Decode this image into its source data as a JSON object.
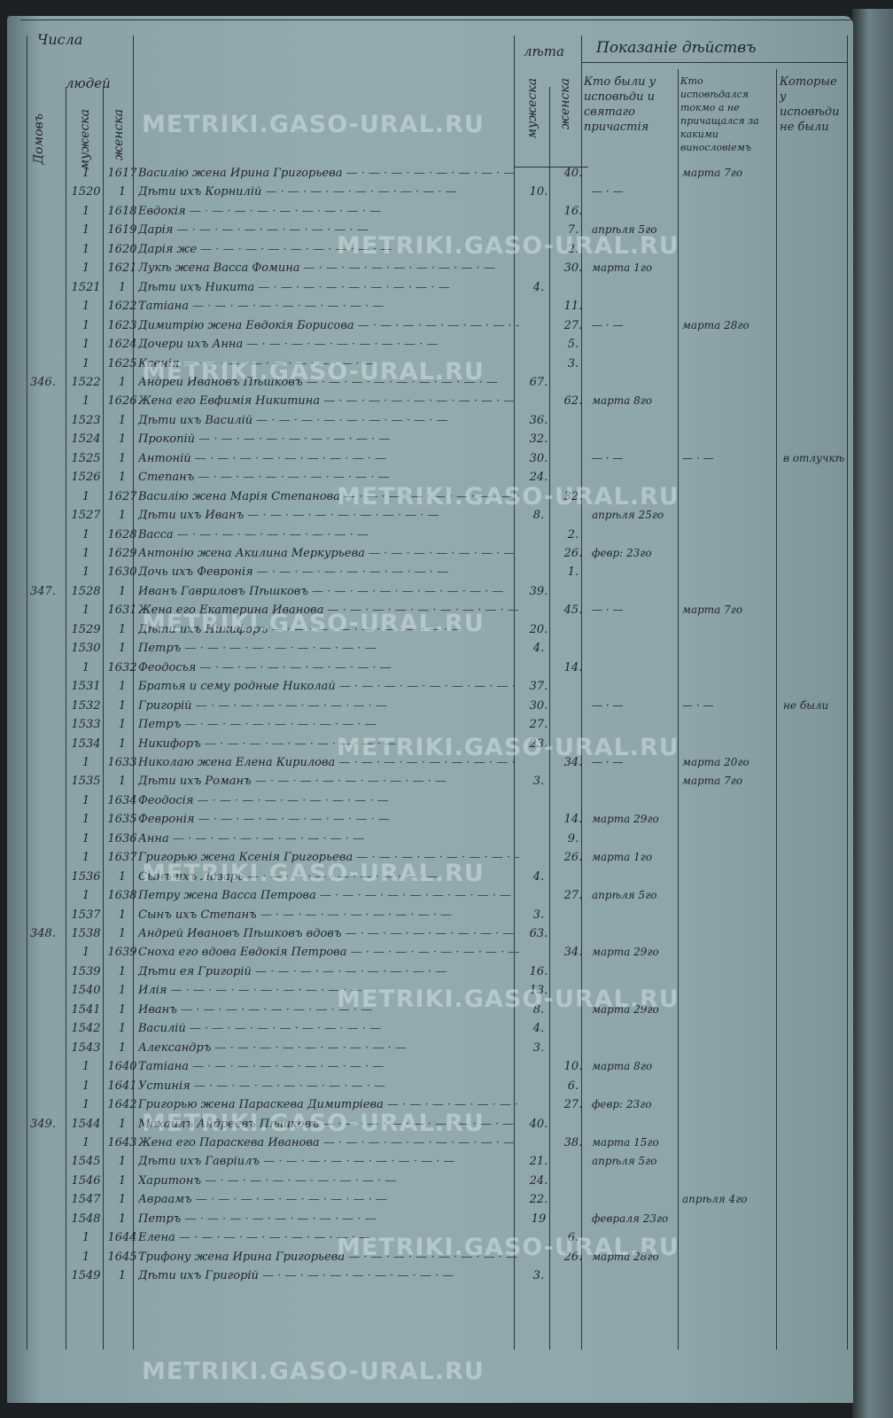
{
  "header": {
    "chisla": "Числа",
    "domov": "Домовъ",
    "lyudey": "людей",
    "muzheska": "мужеска",
    "zhenska": "женска",
    "leta": "лѣта",
    "pokazanie": "Показаніе дѣйствъ",
    "col1": "Кто были у исповѣди и святаго причастія",
    "col2": "Кто исповѣдался токмо а не причащался за какими винословіемъ",
    "col3": "Которые у исповѣди не были"
  },
  "watermark": "METRIKI.GASO-URAL.RU",
  "rows": [
    {
      "hh": "",
      "m": "1",
      "f": "1617",
      "name": "Василію жена Ирина Григорьева",
      "ma": "",
      "fa": "40.",
      "c1": "",
      "c2": "марта 7го",
      "c3": ""
    },
    {
      "hh": "",
      "m": "1520",
      "f": "1",
      "name": "Дѣти ихъ Корнилій",
      "ma": "10.",
      "fa": "",
      "c1": "— · —",
      "c2": "",
      "c3": ""
    },
    {
      "hh": "",
      "m": "1",
      "f": "1618",
      "name": "Евдокія",
      "ma": "",
      "fa": "16.",
      "c1": "",
      "c2": "",
      "c3": ""
    },
    {
      "hh": "",
      "m": "1",
      "f": "1619",
      "name": "Дарія",
      "ma": "",
      "fa": "7.",
      "c1": "апрѣля 5го",
      "c2": "",
      "c3": ""
    },
    {
      "hh": "",
      "m": "1",
      "f": "1620",
      "name": "Дарія же",
      "ma": "",
      "fa": "2.",
      "c1": "",
      "c2": "",
      "c3": ""
    },
    {
      "hh": "",
      "m": "1",
      "f": "1621",
      "name": "Лукѣ жена Васса Фомина",
      "ma": "",
      "fa": "30.",
      "c1": "марта 1го",
      "c2": "",
      "c3": ""
    },
    {
      "hh": "",
      "m": "1521",
      "f": "1",
      "name": "Дѣти ихъ Никита",
      "ma": "4.",
      "fa": "",
      "c1": "",
      "c2": "",
      "c3": ""
    },
    {
      "hh": "",
      "m": "1",
      "f": "1622",
      "name": "Татіана",
      "ma": "",
      "fa": "11.",
      "c1": "",
      "c2": "",
      "c3": ""
    },
    {
      "hh": "",
      "m": "1",
      "f": "1623",
      "name": "Димитрію жена Евдокія Борисова",
      "ma": "",
      "fa": "27.",
      "c1": "— · —",
      "c2": "марта 28го",
      "c3": ""
    },
    {
      "hh": "",
      "m": "1",
      "f": "1624",
      "name": "Дочери ихъ Анна",
      "ma": "",
      "fa": "5.",
      "c1": "",
      "c2": "",
      "c3": ""
    },
    {
      "hh": "",
      "m": "1",
      "f": "1625",
      "name": "Ксенія",
      "ma": "",
      "fa": "3.",
      "c1": "",
      "c2": "",
      "c3": ""
    },
    {
      "hh": "346.",
      "m": "1522",
      "f": "1",
      "name": "Андрей Ивановъ Пѣшковъ",
      "ma": "67.",
      "fa": "",
      "c1": "",
      "c2": "",
      "c3": ""
    },
    {
      "hh": "",
      "m": "1",
      "f": "1626",
      "name": "Жена его Евфимія Никитина",
      "ma": "",
      "fa": "62.",
      "c1": "марта 8го",
      "c2": "",
      "c3": ""
    },
    {
      "hh": "",
      "m": "1523",
      "f": "1",
      "name": "Дѣти ихъ Василій",
      "ma": "36.",
      "fa": "",
      "c1": "",
      "c2": "",
      "c3": ""
    },
    {
      "hh": "",
      "m": "1524",
      "f": "1",
      "name": "Прокопій",
      "ma": "32.",
      "fa": "",
      "c1": "",
      "c2": "",
      "c3": ""
    },
    {
      "hh": "",
      "m": "1525",
      "f": "1",
      "name": "Антоній",
      "ma": "30.",
      "fa": "",
      "c1": "— · —",
      "c2": "— · —",
      "c3": "в отлучкѣ"
    },
    {
      "hh": "",
      "m": "1526",
      "f": "1",
      "name": "Степанъ",
      "ma": "24.",
      "fa": "",
      "c1": "",
      "c2": "",
      "c3": ""
    },
    {
      "hh": "",
      "m": "1",
      "f": "1627",
      "name": "Василію жена Марія Степанова",
      "ma": "",
      "fa": "32.",
      "c1": "",
      "c2": "",
      "c3": ""
    },
    {
      "hh": "",
      "m": "1527",
      "f": "1",
      "name": "Дѣти ихъ Иванъ",
      "ma": "8.",
      "fa": "",
      "c1": "апрѣля 25го",
      "c2": "",
      "c3": ""
    },
    {
      "hh": "",
      "m": "1",
      "f": "1628",
      "name": "Васса",
      "ma": "",
      "fa": "2.",
      "c1": "",
      "c2": "",
      "c3": ""
    },
    {
      "hh": "",
      "m": "1",
      "f": "1629",
      "name": "Антонію жена Акилина Меркурьева",
      "ma": "",
      "fa": "26.",
      "c1": "февр: 23го",
      "c2": "",
      "c3": ""
    },
    {
      "hh": "",
      "m": "1",
      "f": "1630",
      "name": "Дочь ихъ Февронія",
      "ma": "",
      "fa": "1.",
      "c1": "",
      "c2": "",
      "c3": ""
    },
    {
      "hh": "347.",
      "m": "1528",
      "f": "1",
      "name": "Иванъ Гавриловъ Пѣшковъ",
      "ma": "39.",
      "fa": "",
      "c1": "",
      "c2": "",
      "c3": ""
    },
    {
      "hh": "",
      "m": "1",
      "f": "1631",
      "name": "Жена его Екатерина Иванова",
      "ma": "",
      "fa": "45.",
      "c1": "— · —",
      "c2": "марта 7го",
      "c3": ""
    },
    {
      "hh": "",
      "m": "1529",
      "f": "1",
      "name": "Дѣти ихъ Никифоръ",
      "ma": "20.",
      "fa": "",
      "c1": "",
      "c2": "",
      "c3": ""
    },
    {
      "hh": "",
      "m": "1530",
      "f": "1",
      "name": "Петръ",
      "ma": "4.",
      "fa": "",
      "c1": "",
      "c2": "",
      "c3": ""
    },
    {
      "hh": "",
      "m": "1",
      "f": "1632",
      "name": "Феодосья",
      "ma": "",
      "fa": "14.",
      "c1": "",
      "c2": "",
      "c3": ""
    },
    {
      "hh": "",
      "m": "1531",
      "f": "1",
      "name": "Братья и сему родные Николай",
      "ma": "37.",
      "fa": "",
      "c1": "",
      "c2": "",
      "c3": ""
    },
    {
      "hh": "",
      "m": "1532",
      "f": "1",
      "name": "Григорій",
      "ma": "30.",
      "fa": "",
      "c1": "— · —",
      "c2": "— · —",
      "c3": "не были"
    },
    {
      "hh": "",
      "m": "1533",
      "f": "1",
      "name": "Петръ",
      "ma": "27.",
      "fa": "",
      "c1": "",
      "c2": "",
      "c3": ""
    },
    {
      "hh": "",
      "m": "1534",
      "f": "1",
      "name": "Никифоръ",
      "ma": "23.",
      "fa": "",
      "c1": "",
      "c2": "",
      "c3": ""
    },
    {
      "hh": "",
      "m": "1",
      "f": "1633",
      "name": "Николаю жена Елена Кирилова",
      "ma": "",
      "fa": "34.",
      "c1": "— · —",
      "c2": "марта 20го",
      "c3": ""
    },
    {
      "hh": "",
      "m": "1535",
      "f": "1",
      "name": "Дѣти ихъ Романъ",
      "ma": "3.",
      "fa": "",
      "c1": "",
      "c2": "марта 7го",
      "c3": ""
    },
    {
      "hh": "",
      "m": "1",
      "f": "1634",
      "name": "Феодосія",
      "ma": "",
      "fa": "",
      "c1": "",
      "c2": "",
      "c3": ""
    },
    {
      "hh": "",
      "m": "1",
      "f": "1635",
      "name": "Февронія",
      "ma": "",
      "fa": "14.",
      "c1": "марта 29го",
      "c2": "",
      "c3": ""
    },
    {
      "hh": "",
      "m": "1",
      "f": "1636",
      "name": "Анна",
      "ma": "",
      "fa": "9.",
      "c1": "",
      "c2": "",
      "c3": ""
    },
    {
      "hh": "",
      "m": "1",
      "f": "1637",
      "name": "Григорью жена Ксенія Григорьева",
      "ma": "",
      "fa": "26.",
      "c1": "марта 1го",
      "c2": "",
      "c3": ""
    },
    {
      "hh": "",
      "m": "1536",
      "f": "1",
      "name": "Сынъ ихъ Лазарь",
      "ma": "4.",
      "fa": "",
      "c1": "",
      "c2": "",
      "c3": ""
    },
    {
      "hh": "",
      "m": "1",
      "f": "1638",
      "name": "Петру жена Васса Петрова",
      "ma": "",
      "fa": "27.",
      "c1": "апрѣля 5го",
      "c2": "",
      "c3": ""
    },
    {
      "hh": "",
      "m": "1537",
      "f": "1",
      "name": "Сынъ ихъ Степанъ",
      "ma": "3.",
      "fa": "",
      "c1": "",
      "c2": "",
      "c3": ""
    },
    {
      "hh": "348.",
      "m": "1538",
      "f": "1",
      "name": "Андрей Ивановъ Пѣшковъ вдовъ",
      "ma": "63.",
      "fa": "",
      "c1": "",
      "c2": "",
      "c3": ""
    },
    {
      "hh": "",
      "m": "1",
      "f": "1639",
      "name": "Сноха его вдова Евдокія Петрова",
      "ma": "",
      "fa": "34.",
      "c1": "марта 29го",
      "c2": "",
      "c3": ""
    },
    {
      "hh": "",
      "m": "1539",
      "f": "1",
      "name": "Дѣти ея Григорій",
      "ma": "16.",
      "fa": "",
      "c1": "",
      "c2": "",
      "c3": ""
    },
    {
      "hh": "",
      "m": "1540",
      "f": "1",
      "name": "Илія",
      "ma": "13.",
      "fa": "",
      "c1": "",
      "c2": "",
      "c3": ""
    },
    {
      "hh": "",
      "m": "1541",
      "f": "1",
      "name": "Иванъ",
      "ma": "8.",
      "fa": "",
      "c1": "марта 29го",
      "c2": "",
      "c3": ""
    },
    {
      "hh": "",
      "m": "1542",
      "f": "1",
      "name": "Василій",
      "ma": "4.",
      "fa": "",
      "c1": "",
      "c2": "",
      "c3": ""
    },
    {
      "hh": "",
      "m": "1543",
      "f": "1",
      "name": "Александръ",
      "ma": "3.",
      "fa": "",
      "c1": "",
      "c2": "",
      "c3": ""
    },
    {
      "hh": "",
      "m": "1",
      "f": "1640",
      "name": "Татіана",
      "ma": "",
      "fa": "10.",
      "c1": "марта 8го",
      "c2": "",
      "c3": ""
    },
    {
      "hh": "",
      "m": "1",
      "f": "1641",
      "name": "Устинія",
      "ma": "",
      "fa": "6.",
      "c1": "",
      "c2": "",
      "c3": ""
    },
    {
      "hh": "",
      "m": "1",
      "f": "1642",
      "name": "Григорью жена Параскева Димитріева",
      "ma": "",
      "fa": "27.",
      "c1": "февр: 23го",
      "c2": "",
      "c3": ""
    },
    {
      "hh": "349.",
      "m": "1544",
      "f": "1",
      "name": "Михаилъ Андреевъ Пѣшковъ",
      "ma": "40.",
      "fa": "",
      "c1": "",
      "c2": "",
      "c3": ""
    },
    {
      "hh": "",
      "m": "1",
      "f": "1643",
      "name": "Жена его Параскева Иванова",
      "ma": "",
      "fa": "38.",
      "c1": "марта 15го",
      "c2": "",
      "c3": ""
    },
    {
      "hh": "",
      "m": "1545",
      "f": "1",
      "name": "Дѣти ихъ Гавріилъ",
      "ma": "21.",
      "fa": "",
      "c1": "апрѣля 5го",
      "c2": "",
      "c3": ""
    },
    {
      "hh": "",
      "m": "1546",
      "f": "1",
      "name": "Харитонъ",
      "ma": "24.",
      "fa": "",
      "c1": "",
      "c2": "",
      "c3": ""
    },
    {
      "hh": "",
      "m": "1547",
      "f": "1",
      "name": "Авраамъ",
      "ma": "22.",
      "fa": "",
      "c1": "",
      "c2": "апрѣля 4го",
      "c3": ""
    },
    {
      "hh": "",
      "m": "1548",
      "f": "1",
      "name": "Петръ",
      "ma": "19",
      "fa": "",
      "c1": "февраля 23го",
      "c2": "",
      "c3": ""
    },
    {
      "hh": "",
      "m": "1",
      "f": "1644",
      "name": "Елена",
      "ma": "",
      "fa": "6.",
      "c1": "",
      "c2": "",
      "c3": ""
    },
    {
      "hh": "",
      "m": "1",
      "f": "1645",
      "name": "Трифону жена Ирина Григорьева",
      "ma": "",
      "fa": "26.",
      "c1": "марта 28го",
      "c2": "",
      "c3": ""
    },
    {
      "hh": "",
      "m": "1549",
      "f": "1",
      "name": "Дѣти ихъ Григорій",
      "ma": "3.",
      "fa": "",
      "c1": "",
      "c2": "",
      "c3": ""
    }
  ]
}
